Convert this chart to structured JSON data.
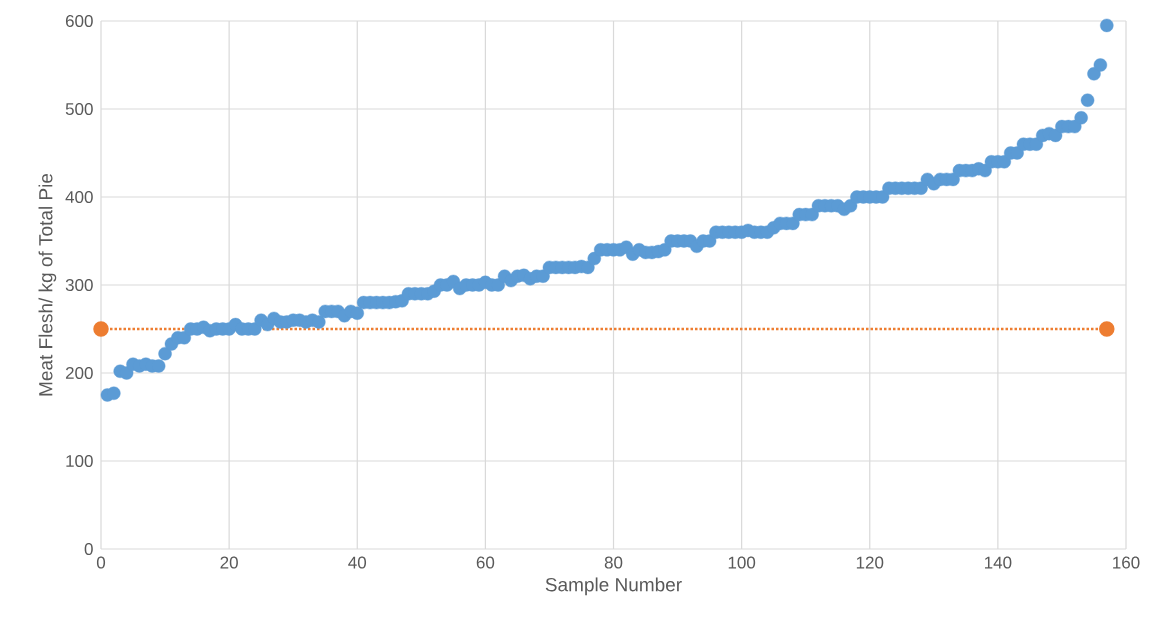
{
  "chart_data": {
    "type": "scatter",
    "xlabel": "Sample Number",
    "ylabel": "Meat Flesh/ kg of Total Pie",
    "xlim": [
      0,
      160
    ],
    "xticks": [
      0,
      20,
      40,
      60,
      80,
      100,
      120,
      140,
      160
    ],
    "ylim": [
      0,
      600
    ],
    "yticks": [
      0,
      100,
      200,
      300,
      400,
      500,
      600
    ],
    "grid": true,
    "marker": "circle",
    "series": [
      {
        "color": "#5b9bd5",
        "x": [
          1,
          2,
          3,
          4,
          5,
          6,
          7,
          8,
          9,
          10,
          11,
          12,
          13,
          14,
          15,
          16,
          17,
          18,
          19,
          20,
          21,
          22,
          23,
          24,
          25,
          26,
          27,
          28,
          29,
          30,
          31,
          32,
          33,
          34,
          35,
          36,
          37,
          38,
          39,
          40,
          41,
          42,
          43,
          44,
          45,
          46,
          47,
          48,
          49,
          50,
          51,
          52,
          53,
          54,
          55,
          56,
          57,
          58,
          59,
          60,
          61,
          62,
          63,
          64,
          65,
          66,
          67,
          68,
          69,
          70,
          71,
          72,
          73,
          74,
          75,
          76,
          77,
          78,
          79,
          80,
          81,
          82,
          83,
          84,
          85,
          86,
          87,
          88,
          89,
          90,
          91,
          92,
          93,
          94,
          95,
          96,
          97,
          98,
          99,
          100,
          101,
          102,
          103,
          104,
          105,
          106,
          107,
          108,
          109,
          110,
          111,
          112,
          113,
          114,
          115,
          116,
          117,
          118,
          119,
          120,
          121,
          122,
          123,
          124,
          125,
          126,
          127,
          128,
          129,
          130,
          131,
          132,
          133,
          134,
          135,
          136,
          137,
          138,
          139,
          140,
          141,
          142,
          143,
          144,
          145,
          146,
          147,
          148,
          149,
          150,
          151,
          152,
          153,
          154,
          155,
          156,
          157
        ],
        "values": [
          175,
          177,
          202,
          200,
          210,
          208,
          210,
          208,
          208,
          222,
          233,
          240,
          240,
          250,
          250,
          252,
          248,
          250,
          250,
          250,
          255,
          250,
          250,
          250,
          260,
          255,
          262,
          258,
          258,
          260,
          260,
          258,
          260,
          258,
          270,
          270,
          270,
          265,
          270,
          268,
          280,
          280,
          280,
          280,
          280,
          281,
          282,
          290,
          290,
          290,
          290,
          293,
          300,
          300,
          304,
          296,
          300,
          300,
          300,
          303,
          300,
          300,
          310,
          305,
          310,
          311,
          307,
          310,
          310,
          320,
          320,
          320,
          320,
          320,
          321,
          320,
          330,
          340,
          340,
          340,
          340,
          343,
          335,
          340,
          337,
          337,
          338,
          340,
          350,
          350,
          350,
          350,
          344,
          350,
          350,
          360,
          360,
          360,
          360,
          360,
          362,
          360,
          360,
          360,
          365,
          370,
          370,
          370,
          380,
          380,
          380,
          390,
          390,
          390,
          390,
          386,
          390,
          400,
          400,
          400,
          400,
          400,
          410,
          410,
          410,
          410,
          410,
          410,
          420,
          415,
          420,
          420,
          420,
          430,
          430,
          430,
          432,
          430,
          440,
          440,
          440,
          450,
          450,
          460,
          460,
          460,
          470,
          472,
          470,
          480,
          480,
          480,
          490,
          510,
          540,
          550,
          595
        ]
      },
      {
        "type": "line",
        "color": "#ed7d31",
        "line_style": "dotted",
        "x": [
          0,
          157
        ],
        "values": [
          250,
          250
        ]
      }
    ]
  }
}
